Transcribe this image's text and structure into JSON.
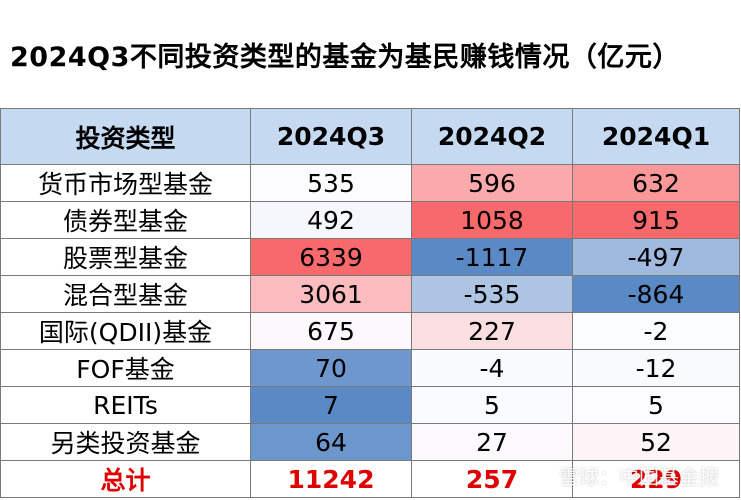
{
  "title": "2024Q3不同投资类型的基金为基民赚钱情况（亿元）",
  "colors": {
    "header_bg": "#c5d9f1",
    "total_text": "#e00000",
    "positive_base": "#f8696b",
    "negative_base": "#5a8ac6",
    "neutral": "#fcfcff"
  },
  "chart_data": {
    "type": "table",
    "title": "2024Q3不同投资类型的基金为基民赚钱情况（亿元）",
    "columns": [
      "投资类型",
      "2024Q3",
      "2024Q2",
      "2024Q1"
    ],
    "rows": [
      {
        "label": "货币市场型基金",
        "values": [
          535,
          596,
          632
        ]
      },
      {
        "label": "债券型基金",
        "values": [
          492,
          1058,
          915
        ]
      },
      {
        "label": "股票型基金",
        "values": [
          6339,
          -1117,
          -497
        ]
      },
      {
        "label": "混合型基金",
        "values": [
          3061,
          -535,
          -864
        ]
      },
      {
        "label": "国际(QDII)基金",
        "values": [
          675,
          227,
          -2
        ]
      },
      {
        "label": "FOF基金",
        "values": [
          70,
          -4,
          -12
        ]
      },
      {
        "label": "REITs",
        "values": [
          7,
          5,
          5
        ]
      },
      {
        "label": "另类投资基金",
        "values": [
          64,
          27,
          52
        ]
      }
    ],
    "total": {
      "label": "总计",
      "values": [
        11242,
        257,
        229
      ]
    }
  },
  "watermark": "雪球：中国基金报"
}
